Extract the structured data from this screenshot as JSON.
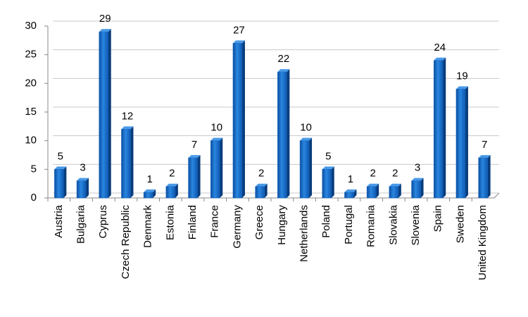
{
  "chart_data": {
    "type": "bar",
    "categories": [
      "Austria",
      "Bulgaria",
      "Cyprus",
      "Czech Republic",
      "Denmark",
      "Estonia",
      "Finland",
      "France",
      "Germany",
      "Greece",
      "Hungary",
      "Netherlands",
      "Poland",
      "Portugal",
      "Romania",
      "Slovakia",
      "Slovenia",
      "Spain",
      "Sweden",
      "United Kingdom"
    ],
    "values": [
      5,
      3,
      29,
      12,
      1,
      2,
      7,
      10,
      27,
      2,
      22,
      10,
      5,
      1,
      2,
      2,
      3,
      24,
      19,
      7
    ],
    "color": "#1565c0",
    "ylim": [
      0,
      30
    ],
    "yticks": [
      0,
      5,
      10,
      15,
      20,
      25,
      30
    ],
    "grid": true,
    "data_labels": true
  }
}
